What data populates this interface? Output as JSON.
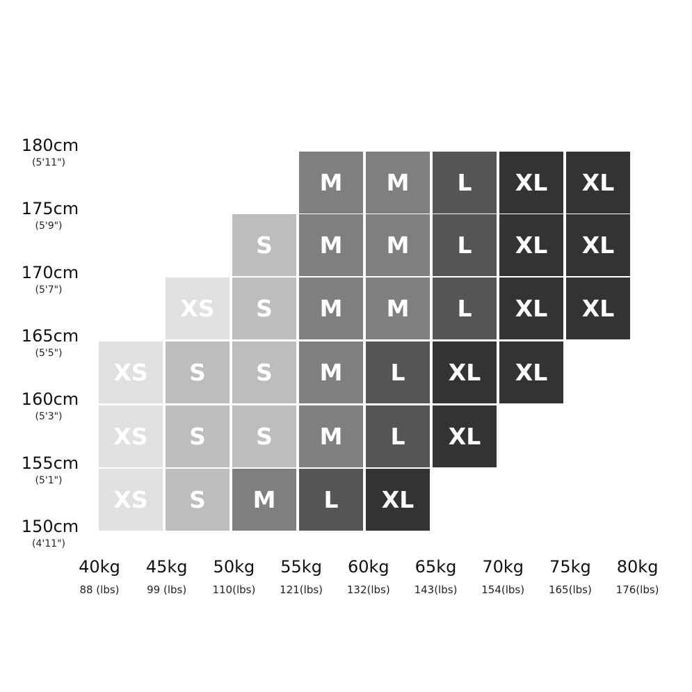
{
  "chart_data": {
    "type": "heatmap",
    "title": "",
    "y_ticks": [
      {
        "label": "180cm",
        "sub": "(5'11\")"
      },
      {
        "label": "175cm",
        "sub": "(5'9\")"
      },
      {
        "label": "170cm",
        "sub": "(5'7\")"
      },
      {
        "label": "165cm",
        "sub": "(5'5\")"
      },
      {
        "label": "160cm",
        "sub": "(5'3\")"
      },
      {
        "label": "155cm",
        "sub": "(5'1\")"
      },
      {
        "label": "150cm",
        "sub": "(4'11\")"
      }
    ],
    "x_ticks": [
      {
        "label": "40kg",
        "sub": "88  (lbs)"
      },
      {
        "label": "45kg",
        "sub": "99 (lbs)"
      },
      {
        "label": "50kg",
        "sub": "110(lbs)"
      },
      {
        "label": "55kg",
        "sub": "121(lbs)"
      },
      {
        "label": "60kg",
        "sub": "132(lbs)"
      },
      {
        "label": "65kg",
        "sub": "143(lbs)"
      },
      {
        "label": "70kg",
        "sub": "154(lbs)"
      },
      {
        "label": "75kg",
        "sub": "165(lbs)"
      },
      {
        "label": "80kg",
        "sub": "176(lbs)"
      }
    ],
    "rows": [
      [
        null,
        null,
        null,
        "M",
        "M",
        "L",
        "XL",
        "XL"
      ],
      [
        null,
        null,
        "S",
        "M",
        "M",
        "L",
        "XL",
        "XL"
      ],
      [
        null,
        "XS",
        "S",
        "M",
        "M",
        "L",
        "XL",
        "XL"
      ],
      [
        "XS",
        "S",
        "S",
        "M",
        "L",
        "XL",
        "XL",
        null
      ],
      [
        "XS",
        "S",
        "S",
        "M",
        "L",
        "XL",
        null,
        null
      ],
      [
        "XS",
        "S",
        "M",
        "L",
        "XL",
        null,
        null,
        null
      ]
    ],
    "size_colors": {
      "XS": "#e0e0e0",
      "S": "#bdbdbd",
      "M": "#7f7f7f",
      "L": "#555555",
      "XL": "#333333"
    }
  }
}
